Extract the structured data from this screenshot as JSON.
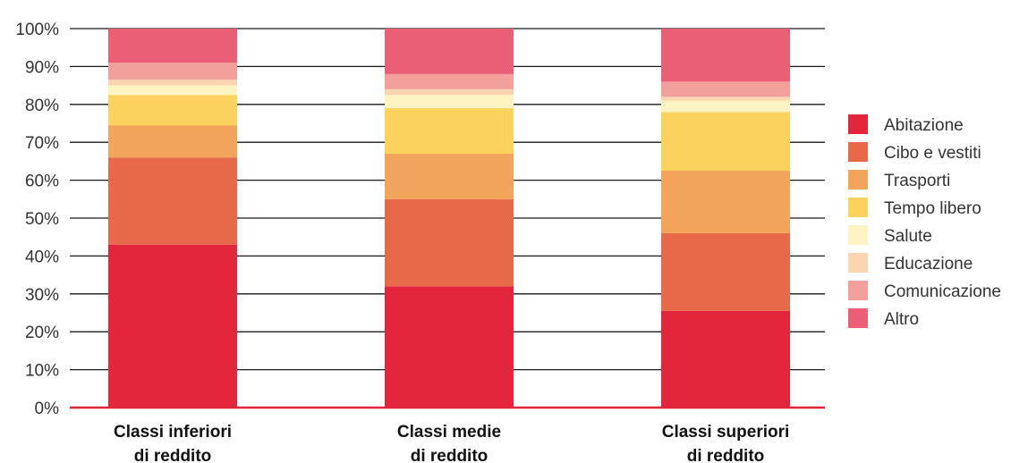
{
  "chart_data": {
    "type": "bar",
    "stacked": true,
    "ylim": [
      0,
      100
    ],
    "y_ticks": [
      0,
      10,
      20,
      30,
      40,
      50,
      60,
      70,
      80,
      90,
      100
    ],
    "y_tick_labels": [
      "0%",
      "10%",
      "20%",
      "30%",
      "40%",
      "50%",
      "60%",
      "70%",
      "80%",
      "90%",
      "100%"
    ],
    "categories": [
      [
        "Classi inferiori",
        "di reddito"
      ],
      [
        "Classi medie",
        "di reddito"
      ],
      [
        "Classi superiori",
        "di reddito"
      ]
    ],
    "grid": true,
    "legend_position": "right",
    "series": [
      {
        "name": "Abitazione",
        "color": "#e3263b",
        "values": [
          43,
          32,
          25.5
        ]
      },
      {
        "name": "Cibo e vestiti",
        "color": "#e8694a",
        "values": [
          23,
          23,
          20.5
        ]
      },
      {
        "name": "Trasporti",
        "color": "#f2a55a",
        "values": [
          8.5,
          12,
          16.5
        ]
      },
      {
        "name": "Tempo libero",
        "color": "#fcd25e",
        "values": [
          8,
          12,
          15.5
        ]
      },
      {
        "name": "Salute",
        "color": "#fef3c2",
        "values": [
          2.5,
          3.5,
          3
        ]
      },
      {
        "name": "Educazione",
        "color": "#fbd4b2",
        "values": [
          1.5,
          1.5,
          1
        ]
      },
      {
        "name": "Comunicazione",
        "color": "#f3a09c",
        "values": [
          4.5,
          4,
          4
        ]
      },
      {
        "name": "Altro",
        "color": "#ea5f76",
        "values": [
          9,
          12,
          14
        ]
      }
    ]
  }
}
